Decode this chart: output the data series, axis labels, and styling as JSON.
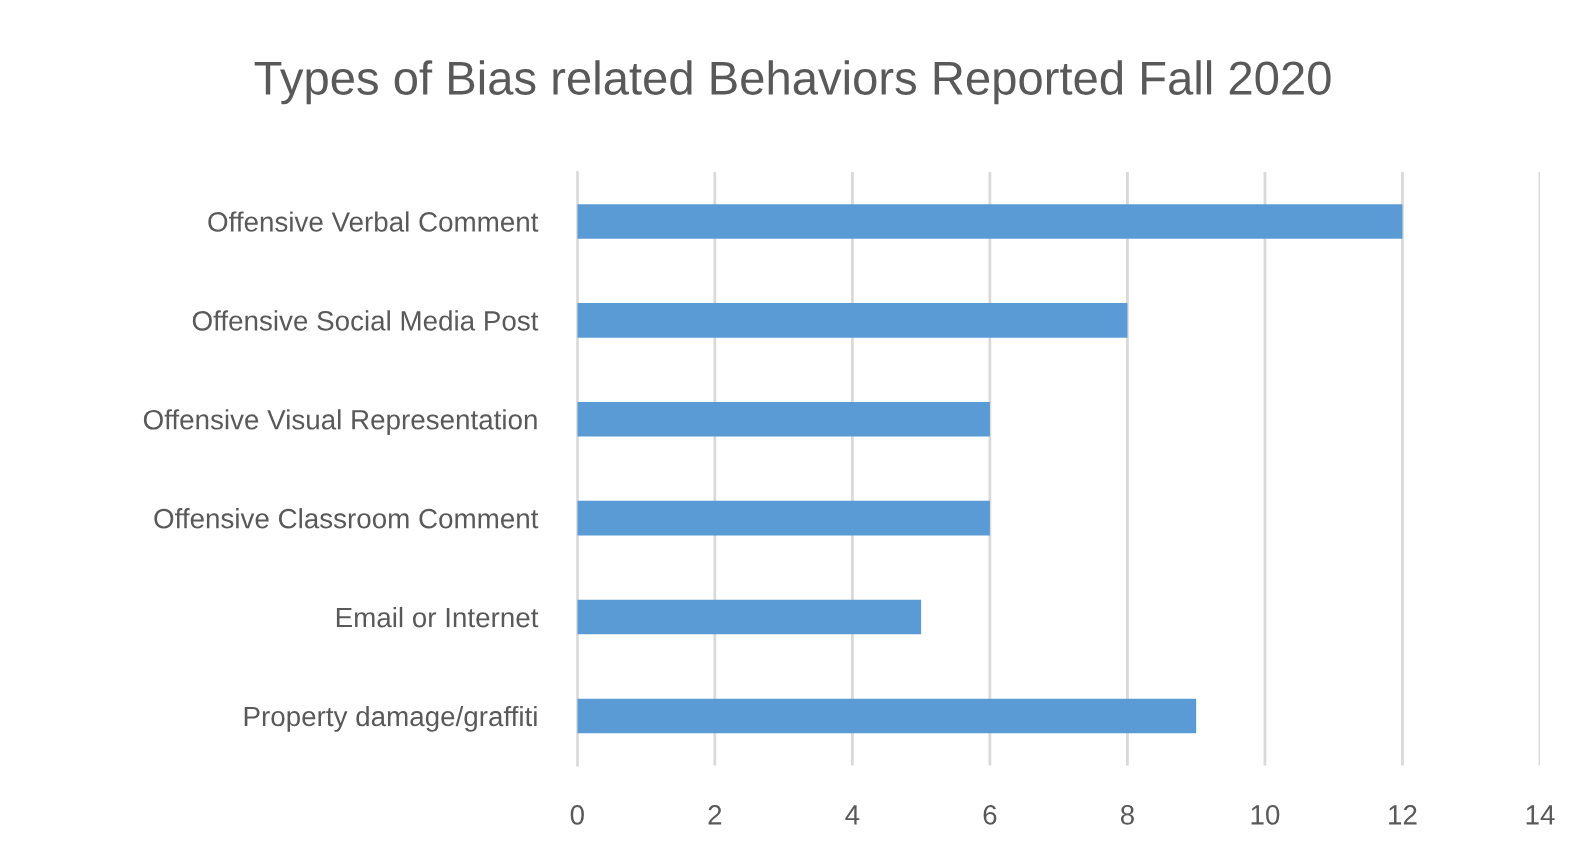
{
  "chart_data": {
    "type": "bar",
    "orientation": "horizontal",
    "title": "Types of Bias related Behaviors Reported Fall 2020",
    "categories": [
      "Offensive Verbal Comment",
      "Offensive Social Media Post",
      "Offensive Visual Representation",
      "Offensive Classroom Comment",
      "Email or Internet",
      "Property damage/graffiti"
    ],
    "values": [
      12,
      8,
      6,
      6,
      5,
      9
    ],
    "color": "#5b9bd5",
    "xlim": [
      0,
      14
    ],
    "xticks": [
      0,
      2,
      4,
      6,
      8,
      10,
      12,
      14
    ],
    "grid": "x"
  }
}
